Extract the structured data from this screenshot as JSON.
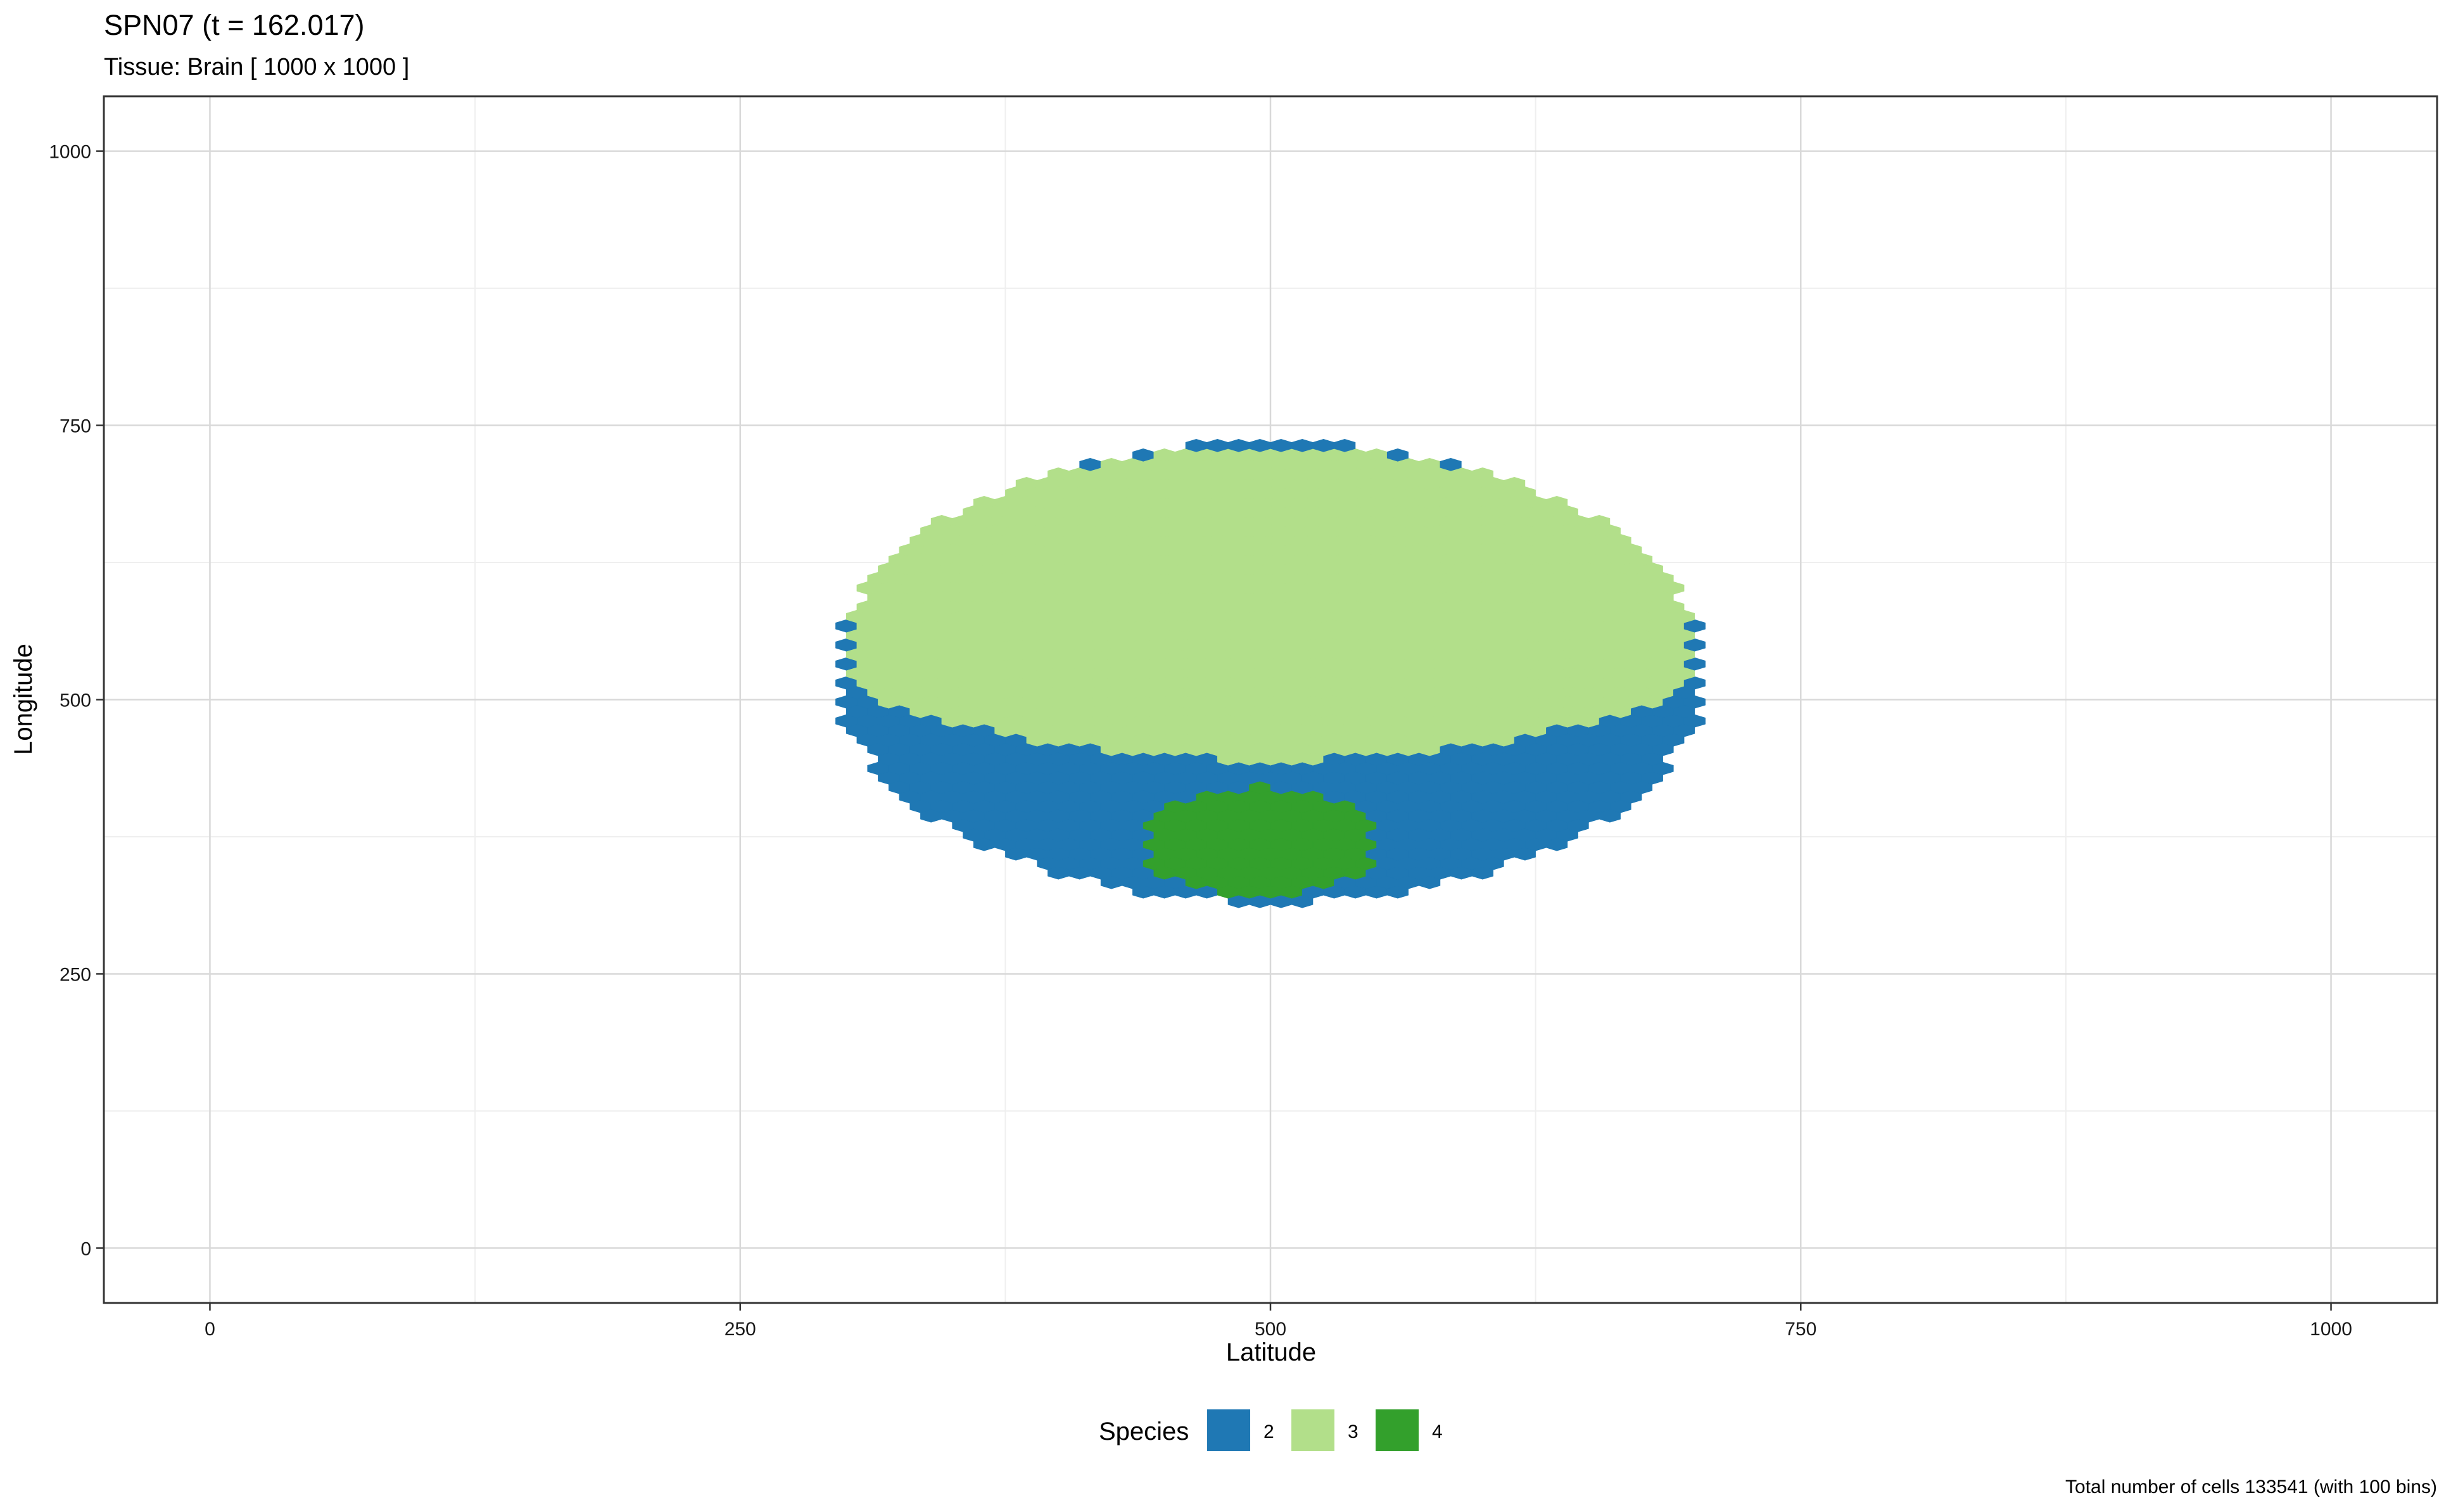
{
  "chart_data": {
    "type": "heatmap",
    "title": "SPN07 (t = 162.017)",
    "subtitle": "Tissue: Brain [ 1000 x 1000 ]",
    "xlabel": "Latitude",
    "ylabel": "Longitude",
    "xlim": [
      -50,
      1050
    ],
    "ylim": [
      -50,
      1050
    ],
    "x_ticks": [
      0,
      250,
      500,
      750,
      1000
    ],
    "y_ticks": [
      0,
      250,
      500,
      750,
      1000
    ],
    "x_tick_labels": [
      "0",
      "250",
      "500",
      "750",
      "1000"
    ],
    "y_tick_labels": [
      "0",
      "250",
      "500",
      "750",
      "1000"
    ],
    "grid": true,
    "bins": 100,
    "legend": {
      "title": "Species",
      "position": "bottom",
      "entries": [
        {
          "label": "2",
          "color": "#1f78b4"
        },
        {
          "label": "3",
          "color": "#b2df8a"
        },
        {
          "label": "4",
          "color": "#33a02c"
        }
      ]
    },
    "regions": [
      {
        "species": "2",
        "description": "whole tumour mass, visible as lower crescent",
        "center": [
          500,
          525
        ],
        "radius_x": 205,
        "radius_y": 210
      },
      {
        "species": "3",
        "description": "upper cap",
        "center": [
          500,
          560
        ],
        "radius_x": 200,
        "radius_y": 170
      },
      {
        "species": "4",
        "description": "lower-centre patch",
        "center": [
          495,
          370
        ],
        "radius_x": 55,
        "radius_y": 50
      }
    ],
    "total_cells": 133541,
    "caption": "Total number of cells 133541 (with 100 bins)"
  },
  "colors": {
    "panel_border": "#333333",
    "grid_major": "#d9d9d9",
    "grid_minor": "#efefef"
  }
}
